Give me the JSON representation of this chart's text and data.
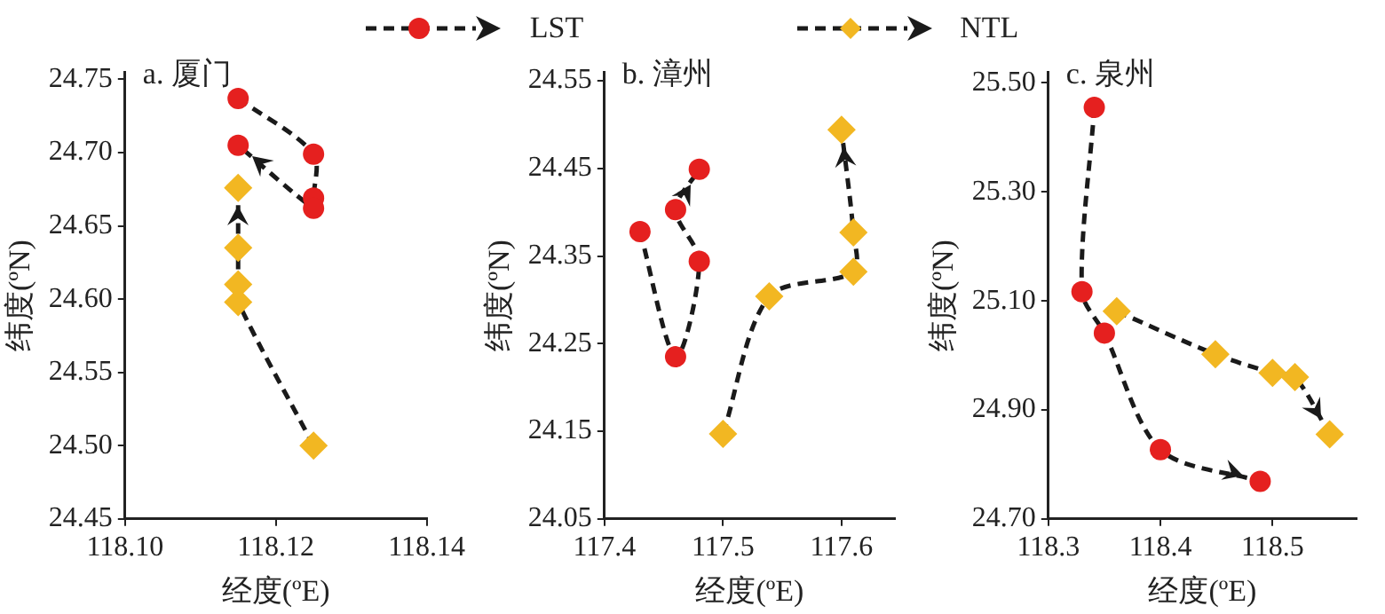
{
  "chart_data": [
    {
      "type": "line",
      "title": "a. 厦门",
      "xlabel": "经度(ºE)",
      "ylabel": "纬度(ºN)",
      "xlim": [
        118.1,
        118.14
      ],
      "ylim": [
        24.45,
        24.755
      ],
      "xticks": [
        {
          "value": 118.1,
          "label": "118.10"
        },
        {
          "value": 118.12,
          "label": "118.12"
        },
        {
          "value": 118.14,
          "label": "118.14"
        }
      ],
      "yticks": [
        24.45,
        {
          "value": 24.5,
          "label": "24.50"
        },
        24.55,
        {
          "value": 24.6,
          "label": "24.60"
        },
        24.65,
        {
          "value": 24.7,
          "label": "24.70"
        },
        24.75
      ],
      "grid": false,
      "legend": "top",
      "line_style": "dashed",
      "series": [
        {
          "name": "LST",
          "color": "#e5201f",
          "marker": "circle",
          "x": [
            118.115,
            118.125,
            118.125,
            118.125,
            118.115
          ],
          "values": [
            24.737,
            24.699,
            24.669,
            24.662,
            24.705
          ]
        },
        {
          "name": "NTL",
          "color": "#f2b722",
          "marker": "diamond",
          "x": [
            118.125,
            118.115,
            118.115,
            118.115,
            118.115
          ],
          "values": [
            24.5,
            24.598,
            24.61,
            24.635,
            24.676
          ]
        }
      ]
    },
    {
      "type": "line",
      "title": "b. 漳州",
      "xlabel": "经度(ºE)",
      "ylabel": "纬度(ºN)",
      "xlim": [
        117.4,
        117.645
      ],
      "ylim": [
        24.05,
        24.56
      ],
      "xticks": [
        117.4,
        117.5,
        117.6
      ],
      "yticks": [
        24.05,
        24.15,
        24.25,
        24.35,
        24.45,
        24.55
      ],
      "grid": false,
      "line_style": "dashed",
      "series": [
        {
          "color": "#e5201f",
          "marker": "circle",
          "x": [
            117.43,
            117.46,
            117.48,
            117.46,
            117.48
          ],
          "values": [
            24.378,
            24.235,
            24.344,
            24.403,
            24.449
          ]
        },
        {
          "color": "#f2b722",
          "marker": "diamond",
          "x": [
            117.5,
            117.539,
            117.61,
            117.61,
            117.6
          ],
          "values": [
            24.147,
            24.304,
            24.332,
            24.377,
            24.494
          ]
        }
      ]
    },
    {
      "type": "line",
      "title": "c. 泉州",
      "xlabel": "经度(ºE)",
      "ylabel": "纬度(ºN)",
      "xlim": [
        118.3,
        118.575
      ],
      "ylim": [
        24.7,
        25.52
      ],
      "xticks": [
        118.3,
        118.4,
        118.5
      ],
      "yticks": [
        {
          "value": 24.7,
          "label": "24.70"
        },
        {
          "value": 24.9,
          "label": "24.90"
        },
        {
          "value": 25.1,
          "label": "25.10"
        },
        {
          "value": 25.3,
          "label": "25.30"
        },
        {
          "value": 25.5,
          "label": "25.50"
        }
      ],
      "grid": false,
      "line_style": "dashed",
      "series": [
        {
          "color": "#e5201f",
          "marker": "circle",
          "x": [
            118.341,
            118.33,
            118.35,
            118.4,
            118.489
          ],
          "values": [
            25.455,
            25.117,
            25.041,
            24.827,
            24.769
          ]
        },
        {
          "color": "#f2b722",
          "marker": "diamond",
          "x": [
            118.361,
            118.449,
            118.5,
            118.52,
            118.551
          ],
          "values": [
            25.081,
            25.002,
            24.968,
            24.96,
            24.855
          ]
        }
      ]
    }
  ]
}
